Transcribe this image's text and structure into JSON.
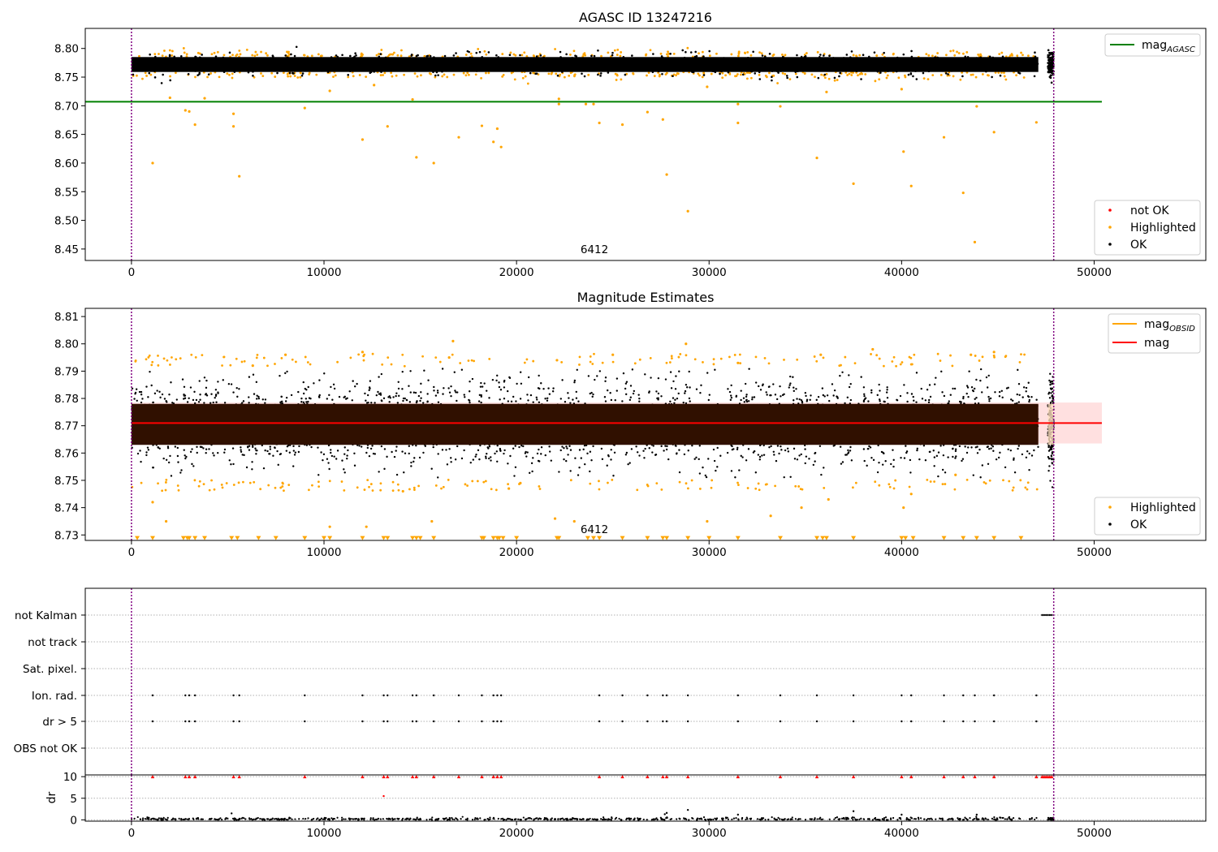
{
  "colors": {
    "ok": "#000000",
    "highlighted": "#ffa500",
    "not_ok": "#ff0000",
    "mag_agasc_line": "#008000",
    "mag_obsid_line": "#ffa500",
    "mag_line": "#ff0000",
    "mag_band": "#ffe0e0",
    "dense_band": "#301000",
    "obs_boundary": "#800080",
    "grid": "#b0b0b0"
  },
  "chart_data": [
    {
      "id": "agasc",
      "type": "scatter",
      "title": "AGASC ID 13247216",
      "xlabel": "",
      "ylabel": "",
      "xlim": [
        -2400,
        55800
      ],
      "ylim": [
        8.43,
        8.835
      ],
      "x_ticks": [
        0,
        10000,
        20000,
        30000,
        40000,
        50000
      ],
      "y_ticks": [
        8.45,
        8.5,
        8.55,
        8.6,
        8.65,
        8.7,
        8.75,
        8.8
      ],
      "annotation": "6412",
      "annotation_x": 23200,
      "obs_boundaries": [
        0,
        47900
      ],
      "reference_line": {
        "name": "mag_AGASC",
        "y": 8.707,
        "x_range": [
          -2400,
          50400
        ]
      },
      "ok_band": {
        "center": 8.772,
        "half_width": 0.013,
        "x_range": [
          0,
          47100
        ]
      },
      "ok_cluster_last_obs": {
        "x_range": [
          47600,
          47900
        ],
        "center": 8.772,
        "half_width": 0.018
      },
      "highlighted_points": [
        [
          1100,
          8.6
        ],
        [
          2800,
          8.692
        ],
        [
          3000,
          8.69
        ],
        [
          3300,
          8.667
        ],
        [
          5300,
          8.686
        ],
        [
          5300,
          8.664
        ],
        [
          5600,
          8.577
        ],
        [
          9000,
          8.696
        ],
        [
          10300,
          8.726
        ],
        [
          12000,
          8.641
        ],
        [
          13300,
          8.664
        ],
        [
          14600,
          8.711
        ],
        [
          14800,
          8.61
        ],
        [
          15700,
          8.6
        ],
        [
          17000,
          8.645
        ],
        [
          18200,
          8.665
        ],
        [
          18800,
          8.637
        ],
        [
          19000,
          8.66
        ],
        [
          19200,
          8.628
        ],
        [
          22200,
          8.712
        ],
        [
          22200,
          8.703
        ],
        [
          23600,
          8.703
        ],
        [
          24000,
          8.703
        ],
        [
          24300,
          8.67
        ],
        [
          25500,
          8.667
        ],
        [
          26800,
          8.689
        ],
        [
          27600,
          8.676
        ],
        [
          27800,
          8.58
        ],
        [
          28900,
          8.516
        ],
        [
          29900,
          8.733
        ],
        [
          31500,
          8.703
        ],
        [
          31500,
          8.67
        ],
        [
          33700,
          8.699
        ],
        [
          35600,
          8.609
        ],
        [
          36100,
          8.724
        ],
        [
          37500,
          8.564
        ],
        [
          40000,
          8.729
        ],
        [
          40100,
          8.62
        ],
        [
          40500,
          8.56
        ],
        [
          42200,
          8.645
        ],
        [
          43200,
          8.548
        ],
        [
          43800,
          8.462
        ],
        [
          43900,
          8.699
        ],
        [
          44800,
          8.654
        ],
        [
          47000,
          8.671
        ],
        [
          2000,
          8.714
        ],
        [
          3800,
          8.713
        ],
        [
          12600,
          8.736
        ]
      ],
      "legends": [
        {
          "position": "top-right",
          "entries": [
            {
              "label_main": "mag",
              "label_sub": "AGASC",
              "color": "#008000",
              "kind": "line"
            }
          ]
        },
        {
          "position": "bottom-right",
          "entries": [
            {
              "label": "not OK",
              "color": "#ff0000",
              "kind": "dot"
            },
            {
              "label": "Highlighted",
              "color": "#ffa500",
              "kind": "dot"
            },
            {
              "label": "OK",
              "color": "#000000",
              "kind": "dot"
            }
          ]
        }
      ]
    },
    {
      "id": "estimates",
      "type": "scatter",
      "title": "Magnitude Estimates",
      "xlabel": "",
      "ylabel": "",
      "xlim": [
        -2400,
        55800
      ],
      "ylim": [
        8.728,
        8.813
      ],
      "x_ticks": [
        0,
        10000,
        20000,
        30000,
        40000,
        50000
      ],
      "y_ticks": [
        8.73,
        8.74,
        8.75,
        8.76,
        8.77,
        8.78,
        8.79,
        8.8,
        8.81
      ],
      "annotation": "6412",
      "annotation_x": 23200,
      "obs_boundaries": [
        0,
        47900
      ],
      "mag_line": {
        "name": "mag",
        "y": 8.771,
        "x_range": [
          0,
          50400
        ]
      },
      "mag_band": {
        "low": 8.7635,
        "high": 8.7785,
        "x_range": [
          0,
          50400
        ]
      },
      "dense_band": {
        "low": 8.763,
        "high": 8.778,
        "x_range": [
          0,
          47100
        ]
      },
      "ok_scatter_range": {
        "low": 8.751,
        "high": 8.791,
        "x_range": [
          0,
          47100
        ]
      },
      "floor_value": 8.729,
      "floor_markers": [
        300,
        1100,
        2700,
        2900,
        3000,
        3300,
        3800,
        5200,
        5500,
        6600,
        7500,
        9000,
        10000,
        10300,
        12000,
        13100,
        13300,
        14600,
        14800,
        15000,
        15700,
        18200,
        18300,
        18800,
        19000,
        19100,
        19300,
        20000,
        22100,
        22200,
        23700,
        24000,
        24300,
        25500,
        26800,
        27600,
        27800,
        28900,
        30000,
        31500,
        33700,
        35600,
        35900,
        36100,
        37500,
        40000,
        40200,
        40600,
        42200,
        43200,
        43900,
        44800,
        46200
      ],
      "highlighted_points": [
        [
          16700,
          8.801
        ],
        [
          28800,
          8.8
        ],
        [
          1100,
          8.742
        ],
        [
          1800,
          8.735
        ],
        [
          15600,
          8.735
        ],
        [
          22000,
          8.736
        ],
        [
          23000,
          8.735
        ],
        [
          29900,
          8.735
        ],
        [
          33200,
          8.737
        ],
        [
          34800,
          8.74
        ],
        [
          36200,
          8.743
        ],
        [
          40100,
          8.74
        ],
        [
          40500,
          8.745
        ],
        [
          14100,
          8.746
        ],
        [
          19600,
          8.747
        ],
        [
          12200,
          8.733
        ],
        [
          10300,
          8.733
        ],
        [
          20200,
          8.749
        ],
        [
          42800,
          8.752
        ],
        [
          6300,
          8.792
        ],
        [
          8000,
          8.796
        ],
        [
          12000,
          8.797
        ],
        [
          16500,
          8.795
        ],
        [
          22100,
          8.794
        ],
        [
          25000,
          8.796
        ],
        [
          31500,
          8.793
        ],
        [
          35800,
          8.796
        ],
        [
          38500,
          8.798
        ],
        [
          43600,
          8.796
        ],
        [
          44800,
          8.797
        ]
      ],
      "legends": [
        {
          "position": "top-right",
          "entries": [
            {
              "label_main": "mag",
              "label_sub": "OBSID",
              "color": "#ffa500",
              "kind": "line"
            },
            {
              "label": "mag",
              "color": "#ff0000",
              "kind": "line"
            }
          ]
        },
        {
          "position": "bottom-right",
          "entries": [
            {
              "label": "Highlighted",
              "color": "#ffa500",
              "kind": "dot"
            },
            {
              "label": "OK",
              "color": "#000000",
              "kind": "dot"
            }
          ]
        }
      ]
    },
    {
      "id": "flags",
      "type": "scatter",
      "xlim": [
        -2400,
        55800
      ],
      "categories": [
        "not Kalman",
        "not track",
        "Sat. pixel.",
        "Ion. rad.",
        "dr > 5",
        "OBS not OK"
      ],
      "obs_boundaries": [
        0,
        47900
      ],
      "flag_points": {
        "not Kalman": [
          47300,
          47400,
          47500,
          47600,
          47700,
          47800
        ],
        "Ion. rad.": [
          1100,
          2800,
          3000,
          3300,
          5300,
          5600,
          9000,
          12000,
          13100,
          13300,
          14600,
          14800,
          15700,
          17000,
          18200,
          18800,
          19000,
          19200,
          24300,
          25500,
          26800,
          27600,
          27800,
          28900,
          31500,
          33700,
          35600,
          37500,
          40000,
          40500,
          42200,
          43200,
          43800,
          44800,
          47000
        ],
        "dr > 5": [
          1100,
          2800,
          3000,
          3300,
          5300,
          5600,
          9000,
          12000,
          13100,
          13300,
          14600,
          14800,
          15700,
          17000,
          18200,
          18800,
          19000,
          19200,
          24300,
          25500,
          26800,
          27600,
          27800,
          28900,
          31500,
          33700,
          35600,
          37500,
          40000,
          40500,
          42200,
          43200,
          43800,
          44800,
          47000
        ]
      }
    },
    {
      "id": "dr",
      "type": "scatter",
      "ylabel": "dr",
      "xlim": [
        -2400,
        55800
      ],
      "ylim": [
        -0.3,
        10.4
      ],
      "x_ticks": [
        0,
        10000,
        20000,
        30000,
        40000,
        50000
      ],
      "y_ticks": [
        0,
        5,
        10
      ],
      "obs_boundaries": [
        0,
        47900
      ],
      "clipped_value": 10,
      "clipped_x": [
        1100,
        2800,
        3000,
        3300,
        5300,
        5600,
        9000,
        12000,
        13100,
        13300,
        14600,
        14800,
        15700,
        17000,
        18200,
        18800,
        19000,
        19200,
        24300,
        25500,
        26800,
        27600,
        27800,
        28900,
        31500,
        33700,
        35600,
        37500,
        40000,
        40500,
        42200,
        43200,
        43800,
        44800,
        47000,
        47300,
        47400,
        47500,
        47600,
        47700,
        47800
      ],
      "extra_points": [
        [
          13100,
          5.5
        ],
        [
          28900,
          2.3
        ],
        [
          37500,
          2.0
        ],
        [
          27700,
          1.3
        ],
        [
          27800,
          1.6
        ],
        [
          5200,
          1.5
        ],
        [
          31500,
          1.2
        ],
        [
          43900,
          1.2
        ],
        [
          40000,
          1.2
        ]
      ]
    }
  ]
}
